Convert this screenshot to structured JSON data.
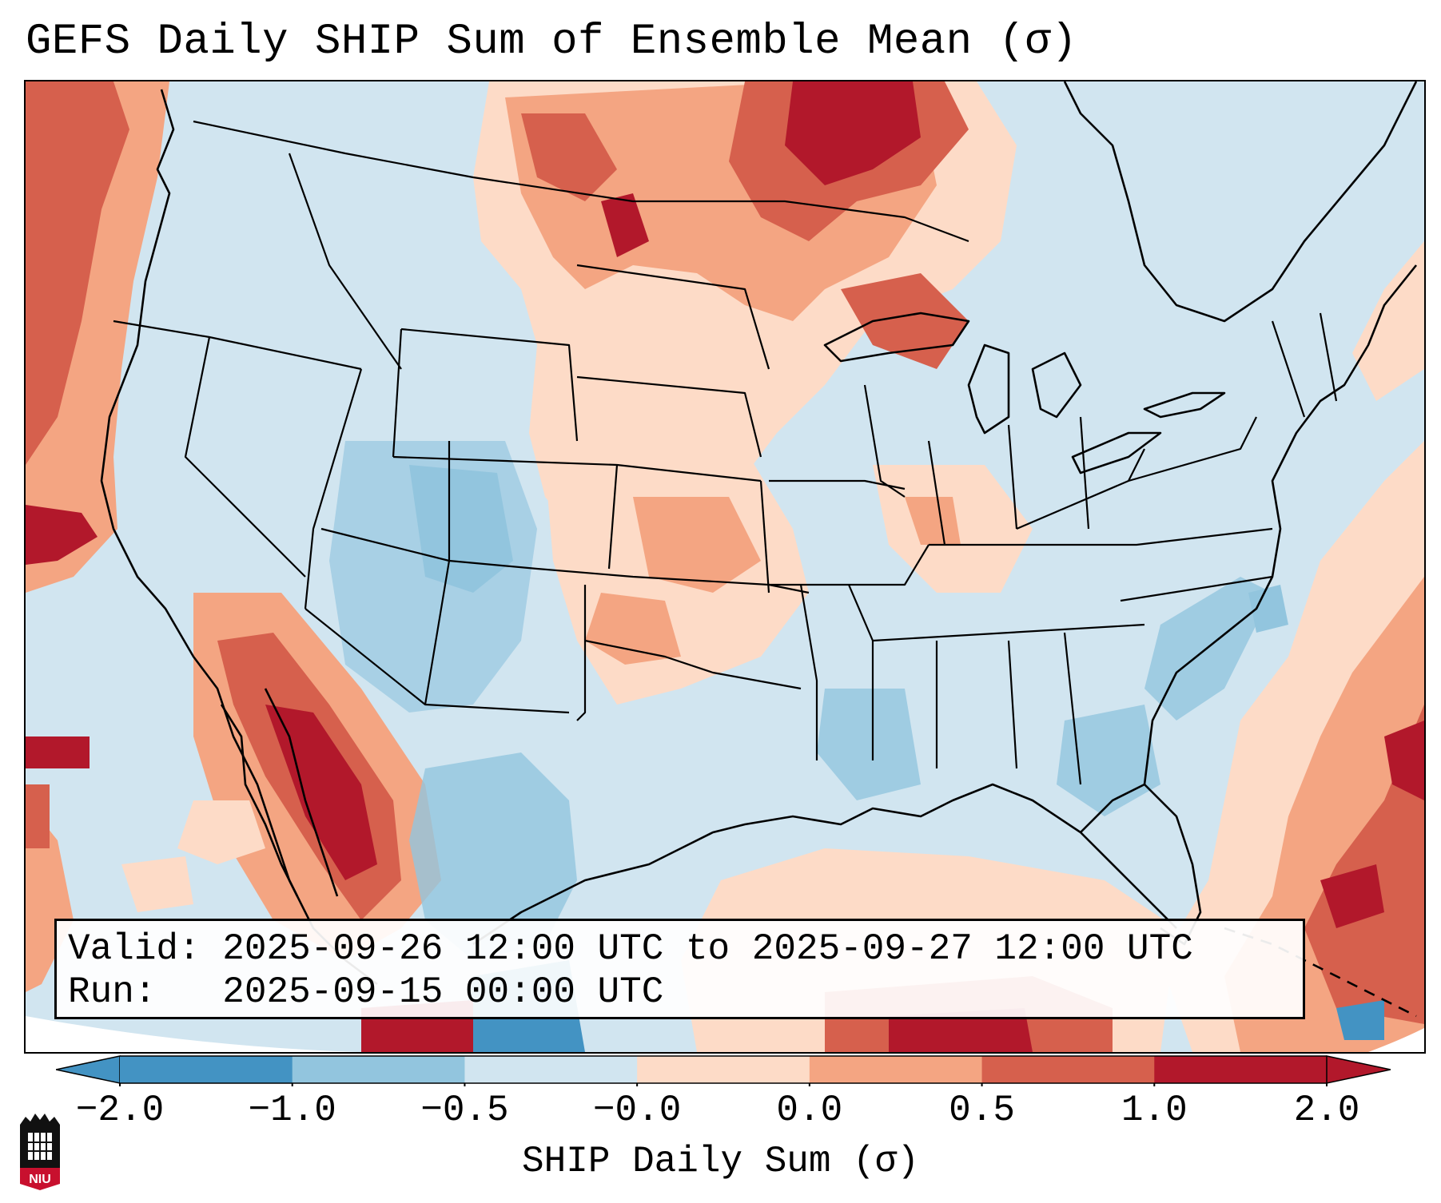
{
  "title": "GEFS Daily SHIP Sum of Ensemble Mean (σ)",
  "info": {
    "valid_label": "Valid:",
    "valid_value": "2025-09-26 12:00 UTC to 2025-09-27 12:00 UTC",
    "run_label": "Run:",
    "run_value": "2025-09-15 00:00 UTC"
  },
  "colorbar": {
    "label": "SHIP Daily Sum (σ)",
    "ticks": [
      "−2.0",
      "−1.0",
      "−0.5",
      "−0.0",
      "0.0",
      "0.5",
      "1.0",
      "2.0"
    ],
    "colors": [
      "#4393c3",
      "#92c5de",
      "#d1e5f0",
      "#f7f7f7",
      "#fddbc7",
      "#f4a582",
      "#d6604d",
      "#b2182b"
    ]
  },
  "logo": {
    "text": "NIU"
  }
}
